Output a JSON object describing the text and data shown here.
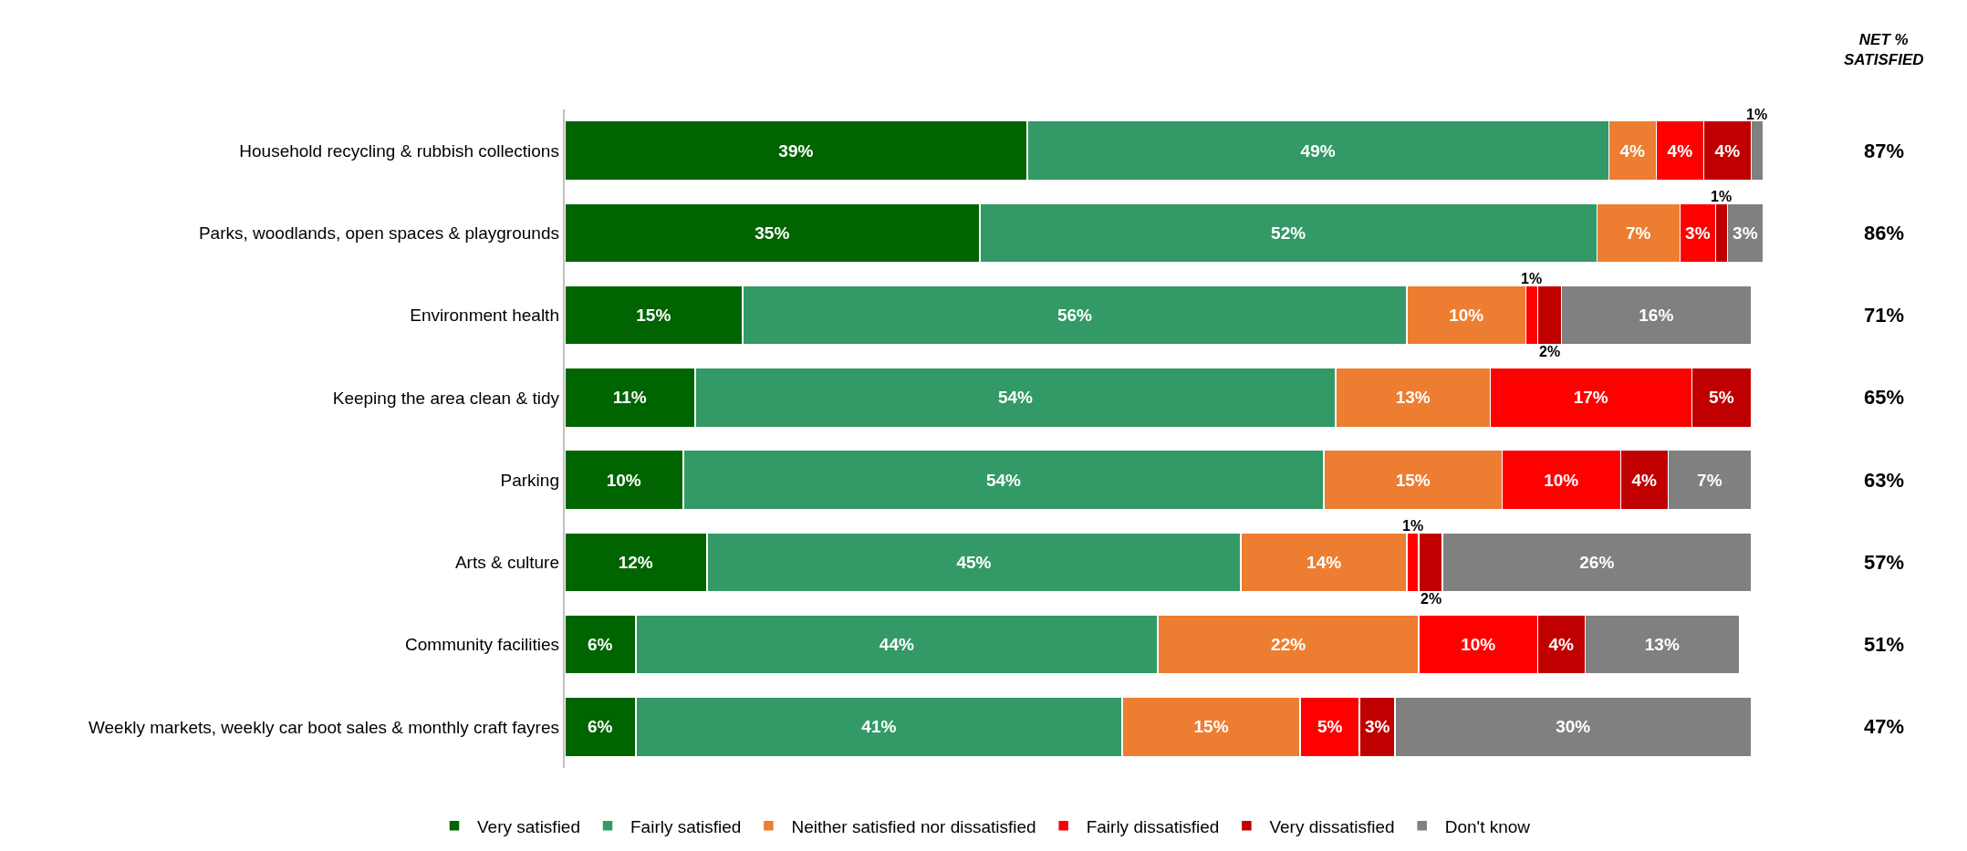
{
  "chart_data": {
    "type": "bar",
    "orientation": "horizontal",
    "stacked": true,
    "legend": "bottom",
    "tick_labels": "y",
    "xlim": [
      0,
      101
    ],
    "categories": [
      "Household recycling & rubbish collections",
      "Parks, woodlands, open spaces & playgrounds",
      "Environment health",
      "Keeping the area clean & tidy",
      "Parking",
      "Arts & culture",
      "Community facilities",
      "Weekly markets, weekly car boot sales & monthly craft fayres"
    ],
    "series": [
      {
        "name": "Very satisfied",
        "color": "#006400",
        "values": [
          39,
          35,
          15,
          11,
          10,
          12,
          6,
          6
        ],
        "value_labels": [
          "39%",
          "35%",
          "15%",
          "11%",
          "10%",
          "12%",
          "6%",
          "6%"
        ]
      },
      {
        "name": "Fairly satisfied",
        "color": "#339966",
        "values": [
          49,
          52,
          56,
          54,
          54,
          45,
          44,
          41
        ],
        "value_labels": [
          "49%",
          "52%",
          "56%",
          "54%",
          "54%",
          "45%",
          "44%",
          "41%"
        ]
      },
      {
        "name": "Neither satisfied nor dissatisfied",
        "color": "#ed7d31",
        "values": [
          4,
          7,
          10,
          13,
          15,
          14,
          22,
          15
        ],
        "value_labels": [
          "4%",
          "7%",
          "10%",
          "13%",
          "15%",
          "14%",
          "22%",
          "15%"
        ]
      },
      {
        "name": "Fairly dissatisfied",
        "color": "#ff0000",
        "values": [
          4,
          3,
          1,
          17,
          10,
          1,
          10,
          5
        ],
        "value_labels": [
          "4%",
          "3%",
          "1%",
          "17%",
          "10%",
          "1%",
          "10%",
          "5%"
        ]
      },
      {
        "name": "Very dissatisfied",
        "color": "#c00000",
        "values": [
          4,
          1,
          2,
          5,
          4,
          2,
          4,
          3
        ],
        "value_labels": [
          "4%",
          "1%",
          "2%",
          "5%",
          "4%",
          "2%",
          "4%",
          "3%"
        ]
      },
      {
        "name": "Don't know",
        "color": "#808080",
        "values": [
          1,
          3,
          16,
          null,
          7,
          26,
          13,
          30
        ],
        "value_labels": [
          "1%",
          "3%",
          "16%",
          null,
          "7%",
          "26%",
          "13%",
          "30%"
        ]
      }
    ],
    "annotations": [
      "NET %\nSATISFIED",
      "87%",
      "86%",
      "71%",
      "65%",
      "63%",
      "57%",
      "51%",
      "47%"
    ]
  }
}
